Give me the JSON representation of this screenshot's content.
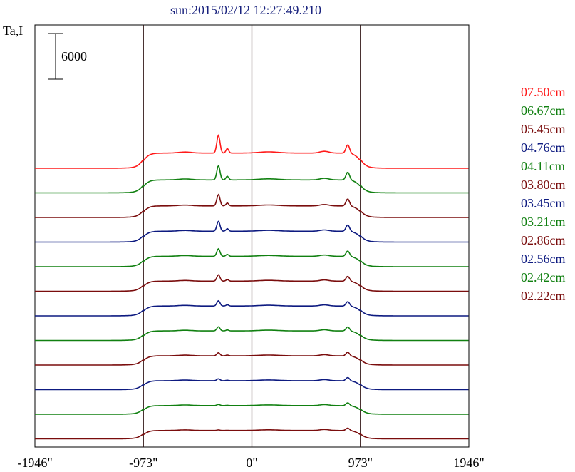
{
  "title": "sun:2015/02/12 12:27:49.210",
  "y_axis_label": "Ta,I",
  "scale_bar_label": "6000",
  "colors": {
    "title": "#1a237e",
    "frame": "#000000",
    "marker": "#2a0f0f"
  },
  "chart_data": {
    "type": "line",
    "title": "sun:2015/02/12 12:27:49.210",
    "ylabel": "Ta,I",
    "xlabel": "",
    "x_ticks": [
      "-1946\"",
      "-973\"",
      "0\"",
      "973\"",
      "1946\""
    ],
    "x_tick_values": [
      -1946,
      -973,
      0,
      973,
      1946
    ],
    "xlim": [
      -1946,
      1946
    ],
    "vertical_markers": [
      -973,
      0,
      973
    ],
    "scale_bar": 6000,
    "legend_position": "right",
    "series": [
      {
        "name": "07.50cm",
        "color": "#ff1a1a",
        "baseline": 0,
        "plateau": 10500,
        "peak_left": 23000,
        "peak_right": 16500
      },
      {
        "name": "06.67cm",
        "color": "#118011",
        "baseline": 0,
        "plateau": 9000,
        "peak_left": 19000,
        "peak_right": 14500
      },
      {
        "name": "05.45cm",
        "color": "#7a0d0d",
        "baseline": 0,
        "plateau": 8000,
        "peak_left": 16000,
        "peak_right": 13000
      },
      {
        "name": "04.76cm",
        "color": "#0d1a80",
        "baseline": 0,
        "plateau": 7500,
        "peak_left": 14500,
        "peak_right": 12000
      },
      {
        "name": "04.11cm",
        "color": "#118011",
        "baseline": 0,
        "plateau": 7200,
        "peak_left": 12500,
        "peak_right": 11000
      },
      {
        "name": "03.80cm",
        "color": "#7a0d0d",
        "baseline": 0,
        "plateau": 7000,
        "peak_left": 11500,
        "peak_right": 10500
      },
      {
        "name": "03.45cm",
        "color": "#0d1a80",
        "baseline": 0,
        "plateau": 6800,
        "peak_left": 10500,
        "peak_right": 10000
      },
      {
        "name": "03.21cm",
        "color": "#118011",
        "baseline": 0,
        "plateau": 6600,
        "peak_left": 9500,
        "peak_right": 9500
      },
      {
        "name": "02.86cm",
        "color": "#7a0d0d",
        "baseline": 0,
        "plateau": 6400,
        "peak_left": 8500,
        "peak_right": 9000
      },
      {
        "name": "02.56cm",
        "color": "#0d1a80",
        "baseline": 0,
        "plateau": 6200,
        "peak_left": 7500,
        "peak_right": 8500
      },
      {
        "name": "02.42cm",
        "color": "#118011",
        "baseline": 0,
        "plateau": 6000,
        "peak_left": 6800,
        "peak_right": 8000
      },
      {
        "name": "02.22cm",
        "color": "#7a0d0d",
        "baseline": 0,
        "plateau": 5800,
        "peak_left": 6200,
        "peak_right": 7500
      }
    ]
  }
}
